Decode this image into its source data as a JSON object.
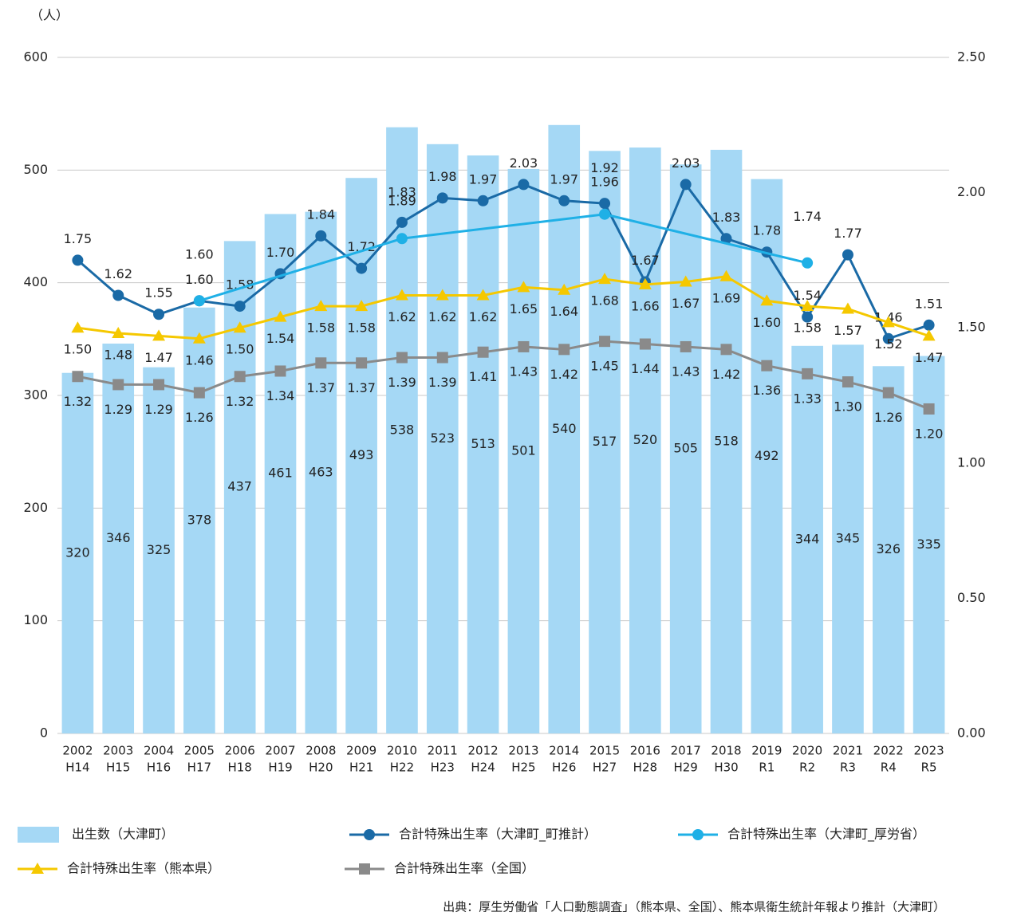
{
  "chart_data": {
    "type": "bar",
    "unit_label": "（人）",
    "categories": [
      "2002",
      "2003",
      "2004",
      "2005",
      "2006",
      "2007",
      "2008",
      "2009",
      "2010",
      "2011",
      "2012",
      "2013",
      "2014",
      "2015",
      "2016",
      "2017",
      "2018",
      "2019",
      "2020",
      "2021",
      "2022",
      "2023"
    ],
    "category_sublabels": [
      "H14",
      "H15",
      "H16",
      "H17",
      "H18",
      "H19",
      "H20",
      "H21",
      "H22",
      "H23",
      "H24",
      "H25",
      "H26",
      "H27",
      "H28",
      "H29",
      "H30",
      "R1",
      "R2",
      "R3",
      "R4",
      "R5"
    ],
    "series": [
      {
        "name": "出生数（大津町）",
        "type": "bar",
        "color": "#a5d8f5",
        "values": [
          320,
          346,
          325,
          378,
          437,
          461,
          463,
          493,
          538,
          523,
          513,
          501,
          540,
          517,
          520,
          505,
          518,
          492,
          344,
          345,
          326,
          335
        ]
      },
      {
        "name": "合計特殊出生率（大津町_町推計）",
        "type": "line",
        "axis": "y2",
        "marker": "circle",
        "color": "#1a6aa6",
        "values": [
          1.75,
          1.62,
          1.55,
          1.6,
          1.58,
          1.7,
          1.84,
          1.72,
          1.89,
          1.98,
          1.97,
          2.03,
          1.97,
          1.96,
          1.67,
          2.03,
          1.83,
          1.78,
          1.54,
          1.77,
          1.46,
          1.51
        ],
        "value_labels": [
          "1.75",
          "1.62",
          "1.55",
          "1.60",
          "1.58",
          "1.70",
          "1.84",
          "1.72",
          "1.89",
          "1.98",
          "1.97",
          "2.03",
          "1.97",
          "1.96",
          "1.67",
          "2.03",
          "1.83",
          "1.78",
          "1.54",
          "1.77",
          "1.46",
          "1.51"
        ]
      },
      {
        "name": "合計特殊出生率（大津町_厚労省）",
        "type": "line",
        "axis": "y2",
        "marker": "circle",
        "color": "#1fb0e6",
        "x": [
          "2005",
          "2010",
          "2015",
          "2020"
        ],
        "values": [
          1.6,
          1.83,
          1.92,
          1.74
        ],
        "value_labels": [
          "1.60",
          "1.83",
          "1.92",
          "1.74"
        ]
      },
      {
        "name": "合計特殊出生率（熊本県）",
        "type": "line",
        "axis": "y2",
        "marker": "triangle",
        "color": "#f5c800",
        "values": [
          1.5,
          1.48,
          1.47,
          1.46,
          1.5,
          1.54,
          1.58,
          1.58,
          1.62,
          1.62,
          1.62,
          1.65,
          1.64,
          1.68,
          1.66,
          1.67,
          1.69,
          1.6,
          1.58,
          1.57,
          1.52,
          1.47
        ],
        "value_labels": [
          "1.50",
          "1.48",
          "1.47",
          "1.46",
          "1.50",
          "1.54",
          "1.58",
          "1.58",
          "1.62",
          "1.62",
          "1.62",
          "1.65",
          "1.64",
          "1.68",
          "1.66",
          "1.67",
          "1.69",
          "1.60",
          "1.58",
          "1.57",
          "1.52",
          "1.47"
        ]
      },
      {
        "name": "合計特殊出生率（全国）",
        "type": "line",
        "axis": "y2",
        "marker": "square",
        "color": "#8a8a8a",
        "values": [
          1.32,
          1.29,
          1.29,
          1.26,
          1.32,
          1.34,
          1.37,
          1.37,
          1.39,
          1.39,
          1.41,
          1.43,
          1.42,
          1.45,
          1.44,
          1.43,
          1.42,
          1.36,
          1.33,
          1.3,
          1.26,
          1.2
        ],
        "value_labels": [
          "1.32",
          "1.29",
          "1.29",
          "1.26",
          "1.32",
          "1.34",
          "1.37",
          "1.37",
          "1.39",
          "1.39",
          "1.41",
          "1.43",
          "1.42",
          "1.45",
          "1.44",
          "1.43",
          "1.42",
          "1.36",
          "1.33",
          "1.30",
          "1.26",
          "1.20"
        ]
      }
    ],
    "ylim": [
      0,
      600
    ],
    "yticks": [
      0,
      100,
      200,
      300,
      400,
      500,
      600
    ],
    "y2lim": [
      0,
      2.5
    ],
    "y2ticks": [
      {
        "value": 0,
        "label": "0.00"
      },
      {
        "value": 0.5,
        "label": "0.50"
      },
      {
        "value": 1,
        "label": "1.00"
      },
      {
        "value": 1.5,
        "label": "1.50"
      },
      {
        "value": 2,
        "label": "2.00"
      },
      {
        "value": 2.5,
        "label": "2.50"
      }
    ],
    "grid": true,
    "source": "出典：厚生労働省「人口動態調査」（熊本県、全国）、熊本県衛生統計年報より推計（大津町）"
  }
}
